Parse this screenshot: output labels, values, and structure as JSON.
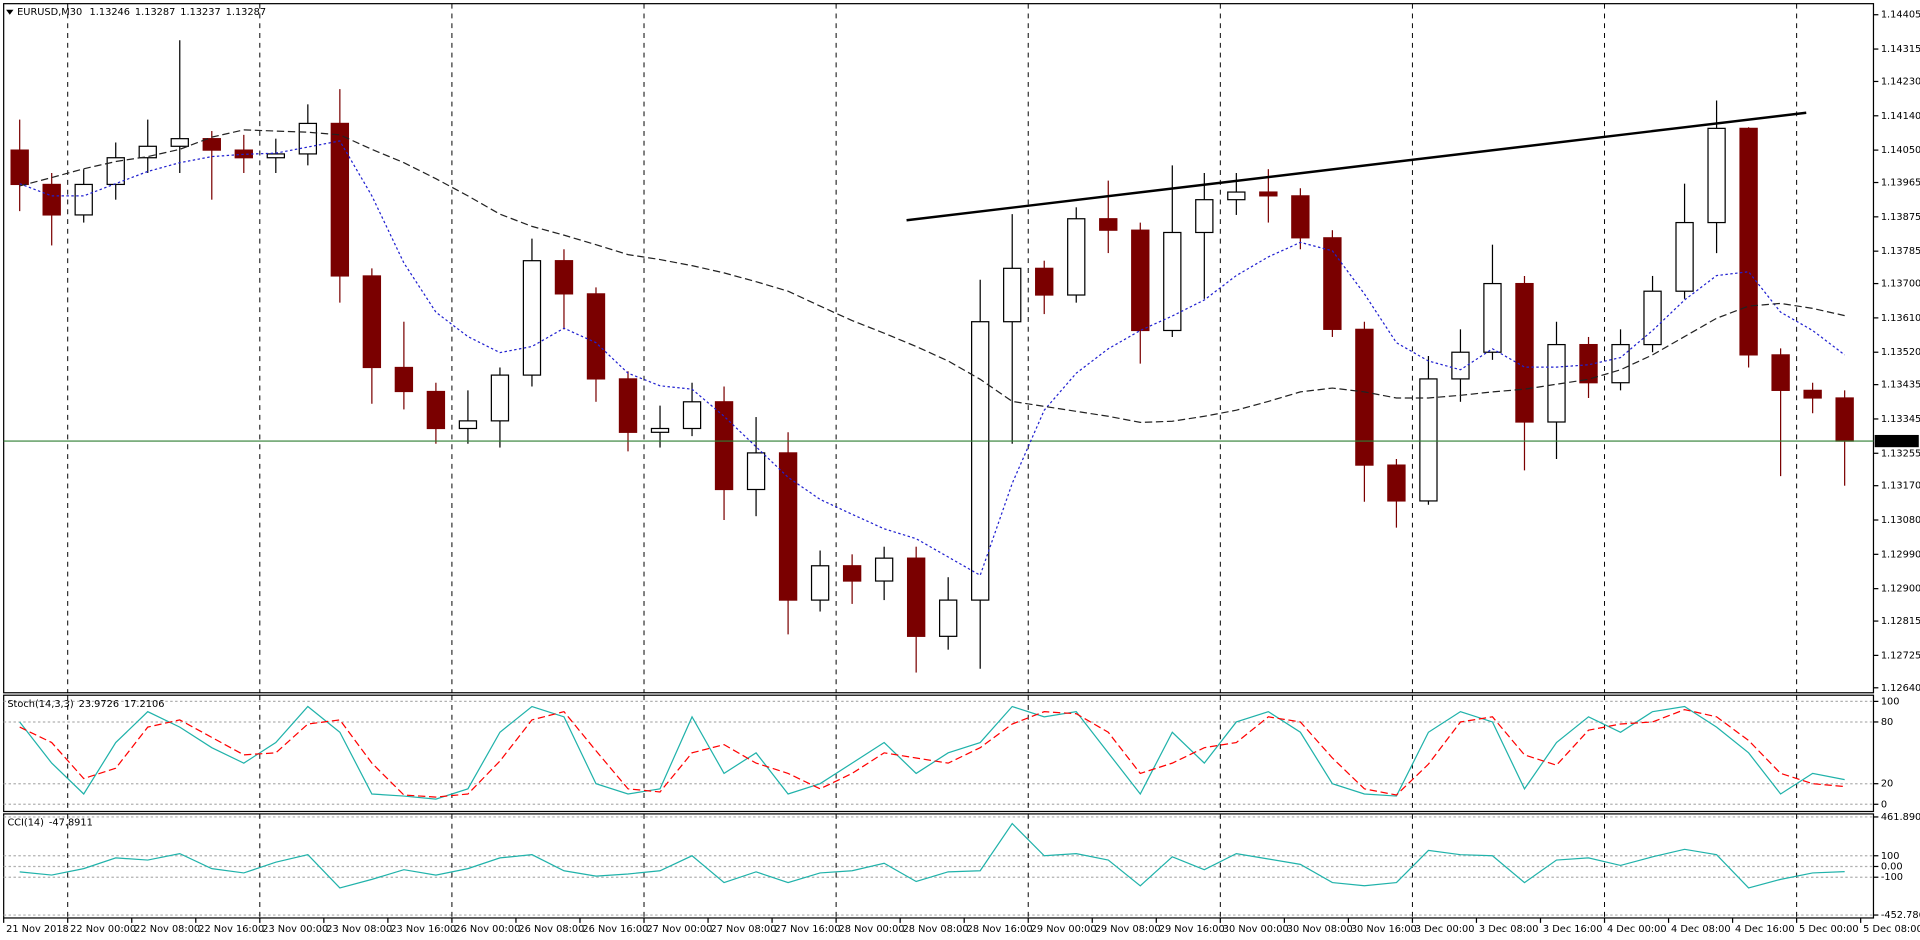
{
  "chart_data": [
    {
      "type": "candlestick",
      "symbol": "EURUSD,M30",
      "header_values": [
        1.13246,
        1.13287,
        1.13237,
        1.13287
      ],
      "xlim": [
        0,
        58.4
      ],
      "ylim": [
        1.12627,
        1.14434
      ],
      "xticks": [
        {
          "value": 0,
          "label": "21 Nov 2018"
        },
        {
          "value": 2,
          "label": "22 Nov 00:00"
        },
        {
          "value": 4,
          "label": "22 Nov 08:00"
        },
        {
          "value": 6,
          "label": "22 Nov 16:00"
        },
        {
          "value": 8,
          "label": "23 Nov 00:00"
        },
        {
          "value": 10,
          "label": "23 Nov 08:00"
        },
        {
          "value": 12,
          "label": "23 Nov 16:00"
        },
        {
          "value": 14,
          "label": "26 Nov 00:00"
        },
        {
          "value": 16,
          "label": "26 Nov 08:00"
        },
        {
          "value": 18,
          "label": "26 Nov 16:00"
        },
        {
          "value": 20,
          "label": "27 Nov 00:00"
        },
        {
          "value": 22,
          "label": "27 Nov 08:00"
        },
        {
          "value": 24,
          "label": "27 Nov 16:00"
        },
        {
          "value": 26,
          "label": "28 Nov 00:00"
        },
        {
          "value": 28,
          "label": "28 Nov 08:00"
        },
        {
          "value": 30,
          "label": "28 Nov 16:00"
        },
        {
          "value": 32,
          "label": "29 Nov 00:00"
        },
        {
          "value": 34,
          "label": "29 Nov 08:00"
        },
        {
          "value": 36,
          "label": "29 Nov 16:00"
        },
        {
          "value": 38,
          "label": "30 Nov 00:00"
        },
        {
          "value": 40,
          "label": "30 Nov 08:00"
        },
        {
          "value": 42,
          "label": "30 Nov 16:00"
        },
        {
          "value": 44,
          "label": "3 Dec 00:00"
        },
        {
          "value": 46,
          "label": "3 Dec 08:00"
        },
        {
          "value": 48,
          "label": "3 Dec 16:00"
        },
        {
          "value": 50,
          "label": "4 Dec 00:00"
        },
        {
          "value": 52,
          "label": "4 Dec 08:00"
        },
        {
          "value": 54,
          "label": "4 Dec 16:00"
        },
        {
          "value": 56,
          "label": "5 Dec 00:00"
        },
        {
          "value": 58,
          "label": "5 Dec 08:00"
        }
      ],
      "yticks": [
        1.14405,
        1.14315,
        {
          "value": 1.1423,
          "label": "1.14230"
        },
        {
          "value": 1.1414,
          "label": "1.14140"
        },
        {
          "value": 1.1405,
          "label": "1.14050"
        },
        1.13965,
        1.13875,
        1.13785,
        {
          "value": 1.137,
          "label": "1.13700"
        },
        {
          "value": 1.1361,
          "label": "1.13610"
        },
        {
          "value": 1.1352,
          "label": "1.13520"
        },
        1.13435,
        1.13345,
        1.13255,
        {
          "value": 1.1317,
          "label": "1.13170"
        },
        {
          "value": 1.1308,
          "label": "1.13080"
        },
        {
          "value": 1.1299,
          "label": "1.12990"
        },
        {
          "value": 1.129,
          "label": "1.12900"
        },
        1.12815,
        1.12725,
        {
          "value": 1.1264,
          "label": "1.12640"
        }
      ],
      "up_color": "#000000",
      "down_color": "#7a0000",
      "open": [
        1.1405,
        1.1396,
        1.1388,
        1.1396,
        1.1403,
        1.1406,
        1.1408,
        1.1405,
        1.1403,
        1.1404,
        1.1412,
        1.1372,
        1.1348,
        1.13417,
        1.1332,
        1.1334,
        1.1346,
        1.1376,
        1.13673,
        1.1345,
        1.1331,
        1.1332,
        1.1339,
        1.1316,
        1.13256,
        1.1287,
        1.1296,
        1.1292,
        1.1298,
        1.12775,
        1.1287,
        1.136,
        1.1374,
        1.1367,
        1.1387,
        1.1384,
        1.13577,
        1.13834,
        1.1392,
        1.1394,
        1.1393,
        1.1382,
        1.1358,
        1.13224,
        1.1313,
        1.1345,
        1.1352,
        1.137,
        1.13337,
        1.1354,
        1.1344,
        1.1354,
        1.1368,
        1.1386,
        1.14107,
        1.13513,
        1.1342,
        1.134
      ],
      "high": [
        1.1413,
        1.1399,
        1.14,
        1.1407,
        1.1413,
        1.14338,
        1.141,
        1.1409,
        1.1408,
        1.1417,
        1.1421,
        1.1374,
        1.136,
        1.1344,
        1.1342,
        1.1348,
        1.13818,
        1.1379,
        1.1369,
        1.1347,
        1.1338,
        1.1344,
        1.1343,
        1.1335,
        1.1331,
        1.13,
        1.1299,
        1.1301,
        1.1301,
        1.1293,
        1.1371,
        1.13882,
        1.1376,
        1.139,
        1.1397,
        1.1386,
        1.1401,
        1.1399,
        1.1399,
        1.14,
        1.1395,
        1.1384,
        1.136,
        1.1324,
        1.1351,
        1.1358,
        1.13802,
        1.1372,
        1.136,
        1.1356,
        1.1358,
        1.1372,
        1.13962,
        1.1418,
        1.1411,
        1.1353,
        1.1344,
        1.1342
      ],
      "low": [
        1.1389,
        1.138,
        1.1386,
        1.1392,
        1.1399,
        1.1399,
        1.1392,
        1.1399,
        1.1399,
        1.1401,
        1.1365,
        1.13385,
        1.1337,
        1.1328,
        1.1328,
        1.1327,
        1.1343,
        1.1358,
        1.1339,
        1.1326,
        1.1327,
        1.133,
        1.1308,
        1.1309,
        1.1278,
        1.1284,
        1.1286,
        1.1287,
        1.1268,
        1.1274,
        1.1269,
        1.1328,
        1.1362,
        1.1365,
        1.1378,
        1.1349,
        1.1356,
        1.1366,
        1.1388,
        1.1386,
        1.1379,
        1.1356,
        1.13128,
        1.1306,
        1.1312,
        1.1339,
        1.135,
        1.1321,
        1.1324,
        1.134,
        1.1342,
        1.1352,
        1.1366,
        1.1378,
        1.1348,
        1.13195,
        1.1336,
        1.1317
      ],
      "close": [
        1.1396,
        1.1388,
        1.1396,
        1.1403,
        1.1406,
        1.1408,
        1.1405,
        1.1403,
        1.1404,
        1.1412,
        1.1372,
        1.1348,
        1.13417,
        1.1332,
        1.1334,
        1.1346,
        1.1376,
        1.13673,
        1.1345,
        1.1331,
        1.1332,
        1.1339,
        1.1316,
        1.13256,
        1.1287,
        1.1296,
        1.1292,
        1.1298,
        1.12775,
        1.1287,
        1.136,
        1.1374,
        1.1367,
        1.1387,
        1.1384,
        1.13577,
        1.13834,
        1.1392,
        1.1394,
        1.1393,
        1.1382,
        1.1358,
        1.13224,
        1.1313,
        1.1345,
        1.1352,
        1.137,
        1.13337,
        1.1354,
        1.1344,
        1.1354,
        1.1368,
        1.1386,
        1.14107,
        1.13513,
        1.1342,
        1.134,
        1.13287
      ],
      "series": [
        {
          "color": "#2020d0",
          "style": "dotted",
          "values": [
            1.13962,
            1.1393,
            1.1393,
            1.13962,
            1.13994,
            1.14017,
            1.14033,
            1.14039,
            1.14042,
            1.14058,
            1.14074,
            1.1393,
            1.13754,
            1.13625,
            1.13561,
            1.13519,
            1.13535,
            1.13583,
            1.13545,
            1.13465,
            1.13432,
            1.13423,
            1.13352,
            1.13272,
            1.13192,
            1.13134,
            1.13095,
            1.13057,
            1.13031,
            1.12983,
            1.12935,
            1.13176,
            1.13368,
            1.13465,
            1.13529,
            1.13577,
            1.13615,
            1.13657,
            1.13721,
            1.1377,
            1.13808,
            1.13786,
            1.13673,
            1.13545,
            1.13497,
            1.13474,
            1.13529,
            1.13481,
            1.13481,
            1.13487,
            1.13506,
            1.13577,
            1.13657,
            1.13721,
            1.13731,
            1.13625,
            1.13577,
            1.13513
          ]
        },
        {
          "color": "#222222",
          "style": "dashed",
          "values": [
            1.13956,
            1.13978,
            1.14001,
            1.1402,
            1.14033,
            1.14052,
            1.14084,
            1.14103,
            1.141,
            1.14097,
            1.1409,
            1.14052,
            1.14017,
            1.13975,
            1.1393,
            1.13882,
            1.1385,
            1.13827,
            1.13802,
            1.13776,
            1.13763,
            1.13747,
            1.13728,
            1.13705,
            1.1368,
            1.13641,
            1.13603,
            1.1357,
            1.13535,
            1.13497,
            1.13449,
            1.13391,
            1.13378,
            1.13365,
            1.13352,
            1.13336,
            1.13339,
            1.13352,
            1.13368,
            1.13391,
            1.13416,
            1.13426,
            1.13416,
            1.134,
            1.134,
            1.13407,
            1.13416,
            1.13423,
            1.13436,
            1.13449,
            1.13474,
            1.13513,
            1.13561,
            1.13609,
            1.13641,
            1.13648,
            1.13635,
            1.13616
          ]
        }
      ],
      "trendline": {
        "x": [
          28.2,
          56.3
        ],
        "y": [
          1.13866,
          1.14148
        ],
        "color": "#000000"
      },
      "current_price": {
        "value": 1.13287,
        "color": "#2e7d32"
      }
    },
    {
      "type": "line",
      "title": "Stoch(14,3,3)",
      "ylim": [
        -7,
        106
      ],
      "yticks": [
        0,
        20,
        80,
        100
      ],
      "series": [
        {
          "color": "#20b2aa",
          "style": "solid",
          "values": [
            80,
            40,
            10,
            60,
            90,
            75,
            55,
            40,
            60,
            95,
            70,
            10,
            8,
            5,
            15,
            70,
            95,
            85,
            20,
            10,
            15,
            85,
            30,
            50,
            10,
            20,
            40,
            60,
            30,
            50,
            60,
            95,
            85,
            90,
            50,
            10,
            70,
            40,
            80,
            90,
            70,
            20,
            10,
            8,
            70,
            90,
            80,
            15,
            60,
            85,
            70,
            90,
            95,
            75,
            50,
            10,
            30,
            23.9726
          ]
        },
        {
          "color": "#ff0000",
          "style": "dashed",
          "values": [
            75,
            60,
            25,
            35,
            75,
            82,
            65,
            48,
            50,
            78,
            82,
            40,
            9,
            7,
            10,
            42,
            82,
            90,
            52,
            15,
            12,
            50,
            58,
            40,
            30,
            15,
            30,
            50,
            45,
            40,
            55,
            78,
            90,
            88,
            70,
            30,
            40,
            55,
            60,
            85,
            80,
            45,
            15,
            9,
            39,
            80,
            85,
            48,
            38,
            72,
            78,
            80,
            92,
            85,
            62,
            30,
            20,
            17.2106
          ]
        }
      ]
    },
    {
      "type": "line",
      "title": "CCI(14)",
      "ylim": [
        -480,
        490
      ],
      "yticks": [
        461.8902,
        100,
        {
          "value": 0,
          "label": "0.00"
        },
        -100,
        -452.7864
      ],
      "series": [
        {
          "color": "#20b2aa",
          "style": "solid",
          "values": [
            -50,
            -80,
            -20,
            80,
            60,
            120,
            -20,
            -60,
            40,
            110,
            -200,
            -120,
            -30,
            -80,
            -20,
            80,
            110,
            -40,
            -90,
            -70,
            -40,
            100,
            -150,
            -50,
            -150,
            -60,
            -40,
            30,
            -140,
            -50,
            -40,
            400,
            100,
            120,
            60,
            -180,
            90,
            -30,
            120,
            70,
            20,
            -150,
            -180,
            -150,
            150,
            110,
            100,
            -150,
            60,
            80,
            10,
            90,
            160,
            110,
            -200,
            -120,
            -60,
            -47.8911
          ]
        }
      ]
    }
  ]
}
